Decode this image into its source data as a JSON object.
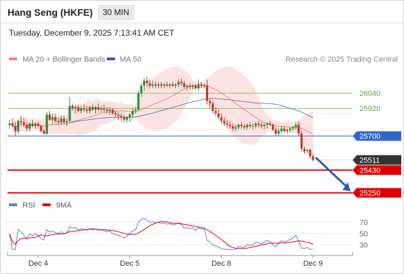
{
  "header": {
    "instrument": "Hang Seng (HKFE)",
    "timeframe": "30 MIN",
    "datetime": "Tuesday, December 9, 2025 7:13:41 AM CET"
  },
  "credit": "Research © 2025 Trading Central",
  "colors": {
    "up": "#2e8b3a",
    "down": "#c0392b",
    "ma20": "#f08080",
    "band_fill": "#fcdede",
    "ma50": "#3b5998",
    "green_level": "#8cbf5a",
    "blue_level": "#3366cc",
    "red_level": "#e00000",
    "current": "#333333",
    "arrow": "#2a5ca8",
    "rsi": "#5b7fd6",
    "rsi_ma": "#e00000"
  },
  "chart_data": [
    {
      "type": "candlestick",
      "legend": [
        {
          "name": "MA 20 + Bollinger Bands",
          "color": "#f08080"
        },
        {
          "name": "MA 50",
          "color": "#3b5998"
        }
      ],
      "x_ticks": [
        "Dec 4",
        "Dec 5",
        "Dec 8",
        "Dec 9"
      ],
      "x_tick_index": [
        10,
        42,
        74,
        106
      ],
      "ylim": [
        25160,
        26280
      ],
      "levels": [
        {
          "value": 26040,
          "label": "26040",
          "kind": "resistance"
        },
        {
          "value": 25920,
          "label": "25920",
          "kind": "resistance"
        },
        {
          "value": 25700,
          "label": "25700",
          "kind": "pivot"
        },
        {
          "value": 25511,
          "label": "25511",
          "kind": "current"
        },
        {
          "value": 25430,
          "label": "25430",
          "kind": "support"
        },
        {
          "value": 25250,
          "label": "25250",
          "kind": "support"
        }
      ],
      "ohlc": [
        [
          25789,
          25830,
          25760,
          25800
        ],
        [
          25800,
          25840,
          25770,
          25780
        ],
        [
          25780,
          25810,
          25700,
          25740
        ],
        [
          25740,
          25830,
          25720,
          25820
        ],
        [
          25820,
          25860,
          25790,
          25810
        ],
        [
          25810,
          25850,
          25770,
          25790
        ],
        [
          25790,
          25810,
          25740,
          25760
        ],
        [
          25760,
          25810,
          25740,
          25800
        ],
        [
          25800,
          25830,
          25770,
          25780
        ],
        [
          25780,
          25810,
          25760,
          25800
        ],
        [
          25800,
          25810,
          25770,
          25780
        ],
        [
          25780,
          25790,
          25730,
          25740
        ],
        [
          25740,
          25760,
          25710,
          25720
        ],
        [
          25720,
          25890,
          25710,
          25870
        ],
        [
          25870,
          25900,
          25820,
          25830
        ],
        [
          25830,
          25880,
          25800,
          25850
        ],
        [
          25850,
          25880,
          25810,
          25820
        ],
        [
          25820,
          25850,
          25790,
          25810
        ],
        [
          25810,
          25860,
          25790,
          25840
        ],
        [
          25840,
          25860,
          25800,
          25810
        ],
        [
          25810,
          25840,
          25780,
          25820
        ],
        [
          25820,
          26010,
          25810,
          25940
        ],
        [
          25940,
          25960,
          25900,
          25920
        ],
        [
          25920,
          25950,
          25880,
          25930
        ],
        [
          25930,
          25950,
          25890,
          25900
        ],
        [
          25900,
          25940,
          25880,
          25920
        ],
        [
          25920,
          25950,
          25890,
          25910
        ],
        [
          25910,
          25940,
          25880,
          25900
        ],
        [
          25900,
          25940,
          25880,
          25930
        ],
        [
          25930,
          25950,
          25900,
          25910
        ],
        [
          25910,
          25940,
          25880,
          25930
        ],
        [
          25930,
          25960,
          25900,
          25910
        ],
        [
          25910,
          25940,
          25890,
          25920
        ],
        [
          25920,
          25950,
          25890,
          25910
        ],
        [
          25910,
          25930,
          25880,
          25900
        ],
        [
          25900,
          25930,
          25870,
          25910
        ],
        [
          25910,
          25920,
          25870,
          25880
        ],
        [
          25880,
          25900,
          25850,
          25870
        ],
        [
          25870,
          25890,
          25830,
          25860
        ],
        [
          25860,
          25880,
          25820,
          25850
        ],
        [
          25850,
          25870,
          25810,
          25830
        ],
        [
          25830,
          25860,
          25810,
          25850
        ],
        [
          25850,
          25880,
          25810,
          25870
        ],
        [
          25870,
          25920,
          25850,
          25900
        ],
        [
          25900,
          25930,
          25880,
          25910
        ],
        [
          25910,
          26060,
          25900,
          26040
        ],
        [
          26040,
          26120,
          26010,
          26100
        ],
        [
          26100,
          26160,
          26060,
          26140
        ],
        [
          26140,
          26170,
          26090,
          26120
        ],
        [
          26120,
          26150,
          26080,
          26100
        ],
        [
          26100,
          26140,
          26080,
          26110
        ],
        [
          26110,
          26130,
          26080,
          26100
        ],
        [
          26100,
          26130,
          26080,
          26110
        ],
        [
          26110,
          26130,
          26080,
          26100
        ],
        [
          26100,
          26120,
          26080,
          26110
        ],
        [
          26110,
          26130,
          26090,
          26100
        ],
        [
          26100,
          26120,
          26080,
          26110
        ],
        [
          26110,
          26130,
          26090,
          26100
        ],
        [
          26100,
          26120,
          26080,
          26110
        ],
        [
          26110,
          26150,
          26090,
          26130
        ],
        [
          26130,
          26160,
          26100,
          26120
        ],
        [
          26120,
          26140,
          26080,
          26090
        ],
        [
          26090,
          26110,
          26060,
          26100
        ],
        [
          26100,
          26120,
          26070,
          26090
        ],
        [
          26090,
          26110,
          26070,
          26100
        ],
        [
          26100,
          26110,
          26070,
          26080
        ],
        [
          26080,
          26150,
          26060,
          26110
        ],
        [
          26110,
          26130,
          26080,
          26100
        ],
        [
          26100,
          26120,
          26080,
          26100
        ],
        [
          26100,
          26150,
          25950,
          25980
        ],
        [
          25980,
          26000,
          25920,
          25960
        ],
        [
          25960,
          25980,
          25880,
          25900
        ],
        [
          25900,
          25930,
          25860,
          25880
        ],
        [
          25880,
          25910,
          25830,
          25850
        ],
        [
          25850,
          25880,
          25800,
          25820
        ],
        [
          25820,
          25850,
          25780,
          25800
        ],
        [
          25800,
          25830,
          25770,
          25790
        ],
        [
          25790,
          25820,
          25760,
          25780
        ],
        [
          25780,
          25800,
          25740,
          25760
        ],
        [
          25760,
          25790,
          25740,
          25770
        ],
        [
          25770,
          25800,
          25750,
          25790
        ],
        [
          25790,
          25810,
          25760,
          25780
        ],
        [
          25780,
          25800,
          25750,
          25770
        ],
        [
          25770,
          25800,
          25750,
          25790
        ],
        [
          25790,
          25810,
          25760,
          25780
        ],
        [
          25780,
          25800,
          25750,
          25780
        ],
        [
          25780,
          25810,
          25760,
          25800
        ],
        [
          25800,
          25820,
          25770,
          25790
        ],
        [
          25790,
          25810,
          25760,
          25780
        ],
        [
          25780,
          25800,
          25750,
          25790
        ],
        [
          25790,
          25810,
          25760,
          25800
        ],
        [
          25800,
          25820,
          25780,
          25790
        ],
        [
          25790,
          25800,
          25740,
          25750
        ],
        [
          25750,
          25770,
          25700,
          25720
        ],
        [
          25720,
          25760,
          25700,
          25740
        ],
        [
          25740,
          25780,
          25720,
          25760
        ],
        [
          25760,
          25780,
          25730,
          25740
        ],
        [
          25740,
          25760,
          25720,
          25750
        ],
        [
          25750,
          25770,
          25730,
          25760
        ],
        [
          25760,
          25780,
          25740,
          25770
        ],
        [
          25770,
          25810,
          25750,
          25790
        ],
        [
          25790,
          25820,
          25700,
          25720
        ],
        [
          25720,
          25740,
          25580,
          25600
        ],
        [
          25600,
          25620,
          25560,
          25580
        ],
        [
          25580,
          25600,
          25560,
          25590
        ],
        [
          25590,
          25600,
          25520,
          25540
        ],
        [
          25540,
          25560,
          25500,
          25511
        ]
      ]
    },
    {
      "type": "line",
      "legend": [
        {
          "name": "RSI",
          "color": "#5b7fd6"
        },
        {
          "name": "9MA",
          "color": "#e00000"
        }
      ],
      "ylim": [
        20,
        80
      ],
      "y_ticks": [
        30,
        50,
        70
      ]
    }
  ]
}
